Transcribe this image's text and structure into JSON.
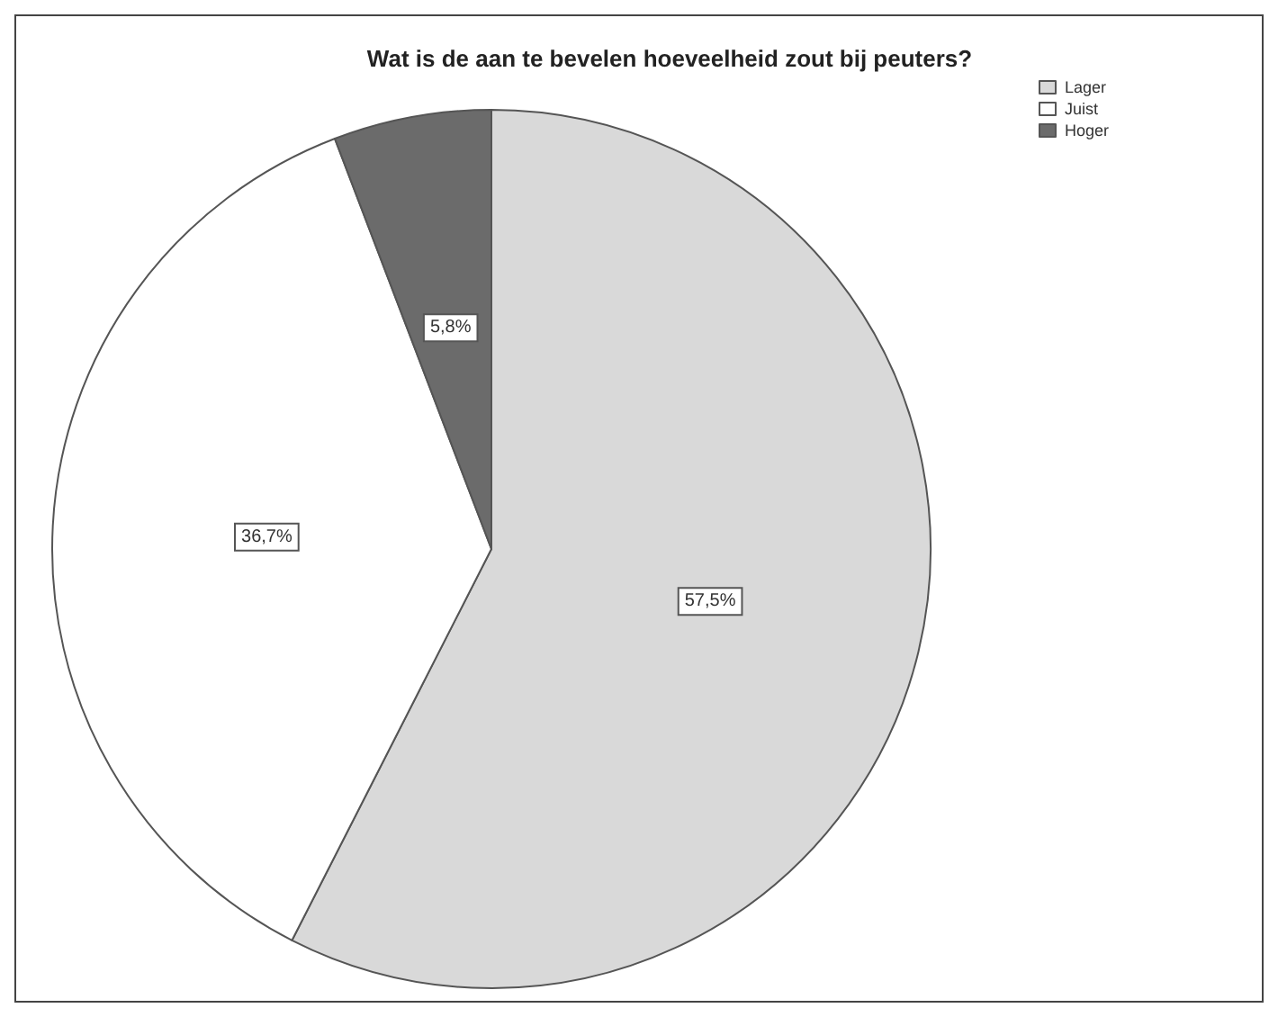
{
  "chart_data": {
    "type": "pie",
    "title": "Wat is de aan te bevelen hoeveelheid zout bij peuters?",
    "categories": [
      "Lager",
      "Juist",
      "Hoger"
    ],
    "values": [
      57.5,
      36.7,
      5.8
    ],
    "colors": [
      "#d9d9d9",
      "#ffffff",
      "#6b6b6b"
    ],
    "value_labels": [
      "57,5%",
      "36,7%",
      "5,8%"
    ],
    "legend": "top right"
  }
}
